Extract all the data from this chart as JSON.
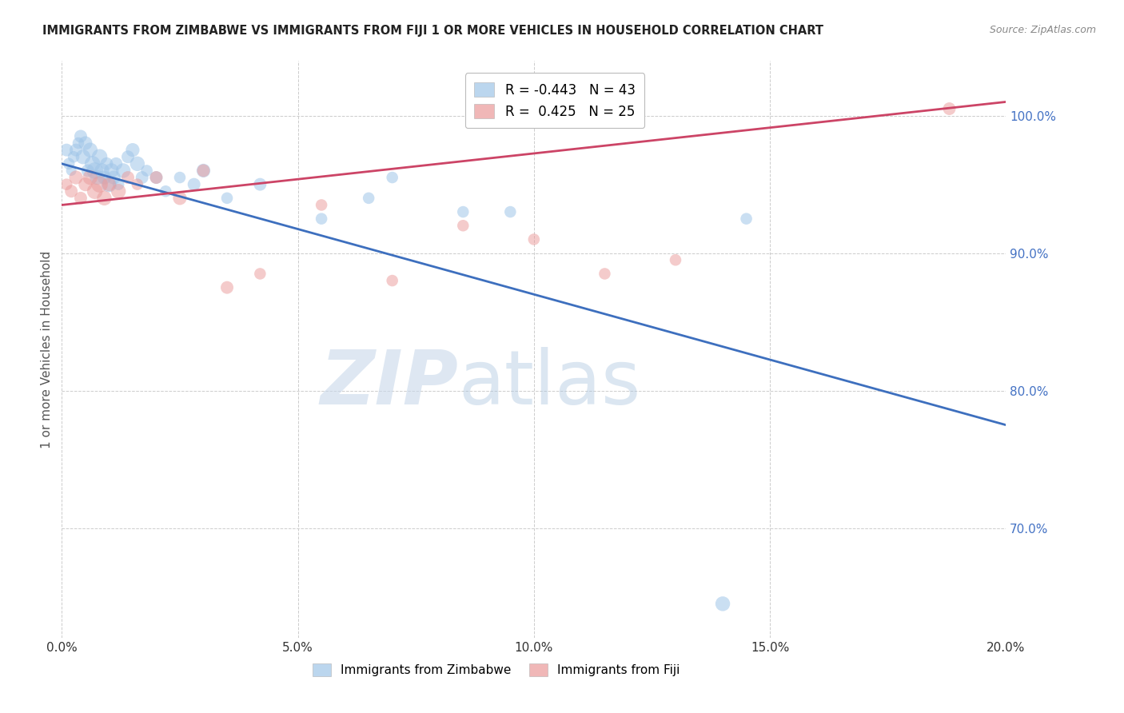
{
  "title": "IMMIGRANTS FROM ZIMBABWE VS IMMIGRANTS FROM FIJI 1 OR MORE VEHICLES IN HOUSEHOLD CORRELATION CHART",
  "source": "Source: ZipAtlas.com",
  "xlabel_ticks": [
    "0.0%",
    "5.0%",
    "10.0%",
    "15.0%",
    "20.0%"
  ],
  "xlabel_tick_vals": [
    0.0,
    5.0,
    10.0,
    15.0,
    20.0
  ],
  "ylabel_ticks": [
    "70.0%",
    "80.0%",
    "90.0%",
    "100.0%"
  ],
  "ylabel_tick_vals": [
    70.0,
    80.0,
    90.0,
    100.0
  ],
  "xlim": [
    0.0,
    20.0
  ],
  "ylim": [
    62.0,
    104.0
  ],
  "legend_label_blue": "R = -0.443   N = 43",
  "legend_label_pink": "R =  0.425   N = 25",
  "xlabel_legend": "Immigrants from Zimbabwe",
  "xlabel2_legend": "Immigrants from Fiji",
  "ylabel": "1 or more Vehicles in Household",
  "watermark_zip": "ZIP",
  "watermark_atlas": "atlas",
  "blue_color": "#9fc5e8",
  "pink_color": "#ea9999",
  "trend_blue": "#3d6fbe",
  "trend_pink": "#cc4466",
  "blue_scatter_x": [
    0.1,
    0.15,
    0.2,
    0.25,
    0.3,
    0.35,
    0.4,
    0.45,
    0.5,
    0.55,
    0.6,
    0.65,
    0.7,
    0.75,
    0.8,
    0.85,
    0.9,
    0.95,
    1.0,
    1.05,
    1.1,
    1.15,
    1.2,
    1.3,
    1.4,
    1.5,
    1.6,
    1.7,
    1.8,
    2.0,
    2.2,
    2.5,
    2.8,
    3.0,
    3.5,
    4.2,
    5.5,
    6.5,
    7.0,
    8.5,
    9.5,
    14.0,
    14.5
  ],
  "blue_scatter_y": [
    97.5,
    96.5,
    96.0,
    97.0,
    97.5,
    98.0,
    98.5,
    97.0,
    98.0,
    96.0,
    97.5,
    96.5,
    96.0,
    95.5,
    97.0,
    96.0,
    95.5,
    96.5,
    95.0,
    96.0,
    95.5,
    96.5,
    95.0,
    96.0,
    97.0,
    97.5,
    96.5,
    95.5,
    96.0,
    95.5,
    94.5,
    95.5,
    95.0,
    96.0,
    94.0,
    95.0,
    92.5,
    94.0,
    95.5,
    93.0,
    93.0,
    64.5,
    92.5
  ],
  "blue_scatter_size": [
    60,
    50,
    40,
    50,
    60,
    50,
    60,
    80,
    70,
    60,
    80,
    90,
    100,
    80,
    90,
    80,
    70,
    60,
    90,
    80,
    70,
    60,
    50,
    80,
    60,
    70,
    80,
    60,
    50,
    60,
    50,
    50,
    60,
    70,
    50,
    60,
    50,
    50,
    50,
    50,
    50,
    80,
    50
  ],
  "pink_scatter_x": [
    0.1,
    0.2,
    0.3,
    0.4,
    0.5,
    0.6,
    0.7,
    0.8,
    0.9,
    1.0,
    1.2,
    1.4,
    1.6,
    2.0,
    2.5,
    3.0,
    3.5,
    4.2,
    5.5,
    7.0,
    8.5,
    10.0,
    11.5,
    13.0,
    18.8
  ],
  "pink_scatter_y": [
    95.0,
    94.5,
    95.5,
    94.0,
    95.0,
    95.5,
    94.5,
    95.0,
    94.0,
    95.0,
    94.5,
    95.5,
    95.0,
    95.5,
    94.0,
    96.0,
    87.5,
    88.5,
    93.5,
    88.0,
    92.0,
    91.0,
    88.5,
    89.5,
    100.5
  ],
  "pink_scatter_size": [
    50,
    60,
    70,
    60,
    70,
    80,
    90,
    100,
    80,
    70,
    80,
    60,
    50,
    60,
    70,
    60,
    60,
    50,
    50,
    50,
    50,
    50,
    50,
    50,
    60
  ],
  "blue_line_x": [
    0.0,
    20.0
  ],
  "blue_line_y": [
    96.5,
    77.5
  ],
  "pink_line_x": [
    0.0,
    20.0
  ],
  "pink_line_y": [
    93.5,
    101.0
  ]
}
